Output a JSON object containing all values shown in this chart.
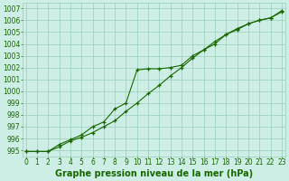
{
  "x": [
    0,
    1,
    2,
    3,
    4,
    5,
    6,
    7,
    8,
    9,
    10,
    11,
    12,
    13,
    14,
    15,
    16,
    17,
    18,
    19,
    20,
    21,
    22,
    23
  ],
  "series1": [
    994.9,
    994.9,
    994.9,
    995.5,
    995.9,
    996.3,
    997.0,
    997.4,
    998.5,
    999.0,
    1001.8,
    1001.9,
    1001.9,
    1002.0,
    1002.2,
    1003.0,
    1003.5,
    1004.0,
    1004.8,
    1005.2,
    1005.7,
    1006.0,
    1006.2,
    1006.7
  ],
  "series2": [
    994.9,
    994.9,
    994.9,
    995.3,
    995.8,
    996.1,
    996.5,
    997.0,
    997.5,
    998.3,
    999.0,
    999.8,
    1000.5,
    1001.3,
    1002.0,
    1002.8,
    1003.5,
    1004.2,
    1004.8,
    1005.3,
    1005.7,
    1006.0,
    1006.2,
    1006.8
  ],
  "line_color": "#1a6600",
  "bg_color": "#cceee4",
  "grid_color": "#99ccbb",
  "title": "Graphe pression niveau de la mer (hPa)",
  "ylim": [
    994.5,
    1007.5
  ],
  "yticks": [
    995,
    996,
    997,
    998,
    999,
    1000,
    1001,
    1002,
    1003,
    1004,
    1005,
    1006,
    1007
  ],
  "xticks": [
    0,
    1,
    2,
    3,
    4,
    5,
    6,
    7,
    8,
    9,
    10,
    11,
    12,
    13,
    14,
    15,
    16,
    17,
    18,
    19,
    20,
    21,
    22,
    23
  ],
  "title_fontsize": 7,
  "tick_fontsize": 5.5
}
